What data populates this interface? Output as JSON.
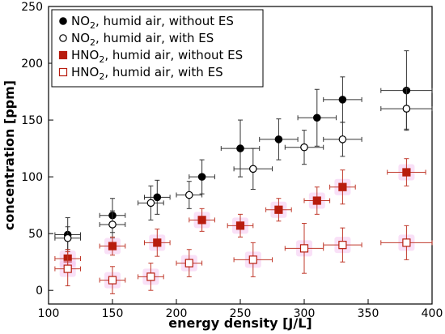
{
  "chart_data": {
    "type": "scatter",
    "xlabel": "energy density [J/L]",
    "ylabel": "concentration [ppm]",
    "xlim": [
      100,
      400
    ],
    "ylim": [
      -12,
      250
    ],
    "xticks": [
      100,
      150,
      200,
      250,
      300,
      350,
      400
    ],
    "yticks": [
      0,
      50,
      100,
      150,
      200,
      250
    ],
    "grid": false,
    "legend_position": "top-left",
    "series": [
      {
        "name": "NO₂, humid air, without ES",
        "legend_main": "NO",
        "legend_sub": "2",
        "legend_rest": ", humid air, without ES",
        "marker": "circle",
        "filled": true,
        "color": "#000000",
        "points": [
          {
            "x": 115,
            "y": 49,
            "xerr": 10,
            "yerr": 15
          },
          {
            "x": 150,
            "y": 66,
            "xerr": 10,
            "yerr": 15
          },
          {
            "x": 185,
            "y": 82,
            "xerr": 10,
            "yerr": 15
          },
          {
            "x": 220,
            "y": 100,
            "xerr": 10,
            "yerr": 15
          },
          {
            "x": 250,
            "y": 125,
            "xerr": 15,
            "yerr": 25
          },
          {
            "x": 280,
            "y": 133,
            "xerr": 15,
            "yerr": 18
          },
          {
            "x": 310,
            "y": 152,
            "xerr": 15,
            "yerr": 25
          },
          {
            "x": 330,
            "y": 168,
            "xerr": 15,
            "yerr": 20
          },
          {
            "x": 380,
            "y": 176,
            "xerr": 20,
            "yerr": 35
          }
        ]
      },
      {
        "name": "NO₂, humid air, with ES",
        "legend_main": "NO",
        "legend_sub": "2",
        "legend_rest": ", humid air, with ES",
        "marker": "circle",
        "filled": false,
        "color": "#000000",
        "points": [
          {
            "x": 115,
            "y": 46,
            "xerr": 10,
            "yerr": 10
          },
          {
            "x": 150,
            "y": 58,
            "xerr": 10,
            "yerr": 12
          },
          {
            "x": 180,
            "y": 77,
            "xerr": 10,
            "yerr": 15
          },
          {
            "x": 210,
            "y": 84,
            "xerr": 10,
            "yerr": 12
          },
          {
            "x": 260,
            "y": 107,
            "xerr": 15,
            "yerr": 18
          },
          {
            "x": 300,
            "y": 126,
            "xerr": 15,
            "yerr": 15
          },
          {
            "x": 330,
            "y": 133,
            "xerr": 15,
            "yerr": 15
          },
          {
            "x": 380,
            "y": 160,
            "xerr": 20,
            "yerr": 18
          }
        ]
      },
      {
        "name": "HNO₂, humid air, without ES",
        "legend_main": "HNO",
        "legend_sub": "2",
        "legend_rest": ", humid air, without ES",
        "marker": "square",
        "filled": true,
        "color": "#b81c0e",
        "points": [
          {
            "x": 115,
            "y": 28,
            "xerr": 10,
            "yerr": 8
          },
          {
            "x": 150,
            "y": 39,
            "xerr": 10,
            "yerr": 8
          },
          {
            "x": 185,
            "y": 42,
            "xerr": 10,
            "yerr": 12
          },
          {
            "x": 220,
            "y": 62,
            "xerr": 10,
            "yerr": 10
          },
          {
            "x": 250,
            "y": 57,
            "xerr": 10,
            "yerr": 10
          },
          {
            "x": 280,
            "y": 71,
            "xerr": 10,
            "yerr": 10
          },
          {
            "x": 310,
            "y": 79,
            "xerr": 10,
            "yerr": 12
          },
          {
            "x": 330,
            "y": 91,
            "xerr": 10,
            "yerr": 15
          },
          {
            "x": 380,
            "y": 104,
            "xerr": 15,
            "yerr": 12
          }
        ]
      },
      {
        "name": "HNO₂, humid air, with ES",
        "legend_main": "HNO",
        "legend_sub": "2",
        "legend_rest": ", humid air, with ES",
        "marker": "square",
        "filled": false,
        "color": "#b81c0e",
        "points": [
          {
            "x": 115,
            "y": 19,
            "xerr": 10,
            "yerr": 15
          },
          {
            "x": 150,
            "y": 9,
            "xerr": 10,
            "yerr": 12
          },
          {
            "x": 180,
            "y": 12,
            "xerr": 10,
            "yerr": 12
          },
          {
            "x": 210,
            "y": 24,
            "xerr": 10,
            "yerr": 12
          },
          {
            "x": 260,
            "y": 27,
            "xerr": 15,
            "yerr": 15
          },
          {
            "x": 300,
            "y": 37,
            "xerr": 15,
            "yerr": 22
          },
          {
            "x": 330,
            "y": 40,
            "xerr": 15,
            "yerr": 15
          },
          {
            "x": 380,
            "y": 42,
            "xerr": 20,
            "yerr": 15
          }
        ]
      }
    ]
  }
}
